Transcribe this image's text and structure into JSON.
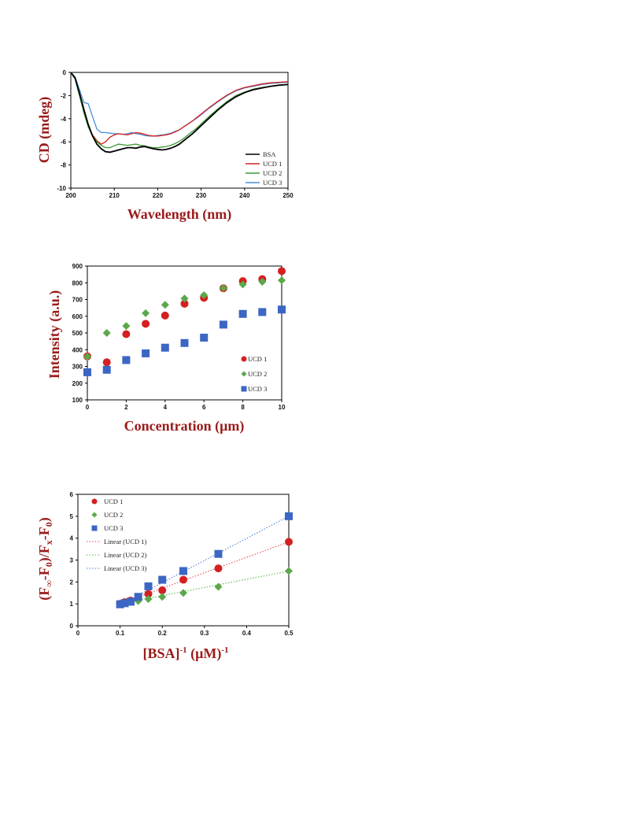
{
  "colors": {
    "axis_title": "#9b1b1b",
    "bsa": "#000000",
    "ucd1": "#d42020",
    "ucd2": "#3d9a35",
    "ucd3": "#4a8fd6",
    "ucd1_marker": "#d42020",
    "ucd2_marker": "#5aa84a",
    "ucd3_marker": "#3b66c4",
    "fit1": "#e05050",
    "fit2": "#5dba4c",
    "fit3": "#4a7fd8"
  },
  "chart_data": [
    {
      "type": "line",
      "xlabel": "Wavelength (nm)",
      "ylabel": "CD (mdeg)",
      "xlim": [
        200,
        250
      ],
      "ylim": [
        -10,
        0
      ],
      "xticks": [
        "200",
        "210",
        "220",
        "230",
        "240",
        "250"
      ],
      "yticks": [
        "0",
        "-2",
        "-4",
        "-6",
        "-8",
        "-10"
      ],
      "legend_position": "bottom-right",
      "series": [
        {
          "name": "BSA",
          "color_key": "bsa",
          "x": [
            200,
            201,
            202,
            203,
            204,
            205,
            206,
            207,
            208,
            209,
            210,
            211,
            212,
            213,
            214,
            215,
            216,
            217,
            218,
            219,
            220,
            221,
            222,
            223,
            224,
            225,
            226,
            227,
            228,
            229,
            230,
            232,
            234,
            236,
            238,
            240,
            242,
            244,
            246,
            248,
            250
          ],
          "y": [
            0.5,
            -0.5,
            -1.8,
            -3.2,
            -4.5,
            -5.5,
            -6.2,
            -6.6,
            -6.85,
            -6.9,
            -6.8,
            -6.7,
            -6.6,
            -6.5,
            -6.5,
            -6.55,
            -6.45,
            -6.4,
            -6.5,
            -6.6,
            -6.65,
            -6.7,
            -6.65,
            -6.55,
            -6.4,
            -6.2,
            -5.9,
            -5.6,
            -5.3,
            -4.95,
            -4.6,
            -3.9,
            -3.2,
            -2.6,
            -2.1,
            -1.75,
            -1.5,
            -1.35,
            -1.2,
            -1.1,
            -1.05
          ]
        },
        {
          "name": "UCD 1",
          "color_key": "ucd1",
          "x": [
            200,
            201,
            202,
            203,
            204,
            205,
            206,
            207,
            208,
            209,
            210,
            211,
            212,
            213,
            214,
            215,
            216,
            217,
            218,
            219,
            220,
            221,
            222,
            223,
            224,
            225,
            226,
            227,
            228,
            229,
            230,
            232,
            234,
            236,
            238,
            240,
            242,
            244,
            246,
            248,
            250
          ],
          "y": [
            0.5,
            -0.5,
            -1.9,
            -3.4,
            -4.6,
            -5.4,
            -5.9,
            -6.2,
            -6.0,
            -5.6,
            -5.4,
            -5.3,
            -5.35,
            -5.4,
            -5.3,
            -5.2,
            -5.25,
            -5.35,
            -5.45,
            -5.5,
            -5.5,
            -5.45,
            -5.4,
            -5.3,
            -5.15,
            -4.95,
            -4.7,
            -4.45,
            -4.2,
            -3.9,
            -3.6,
            -3.0,
            -2.45,
            -1.95,
            -1.55,
            -1.3,
            -1.15,
            -1.0,
            -0.9,
            -0.85,
            -0.8
          ]
        },
        {
          "name": "UCD 2",
          "color_key": "ucd2",
          "x": [
            200,
            201,
            202,
            203,
            204,
            205,
            206,
            207,
            208,
            209,
            210,
            211,
            212,
            213,
            214,
            215,
            216,
            217,
            218,
            219,
            220,
            221,
            222,
            223,
            224,
            225,
            226,
            227,
            228,
            229,
            230,
            232,
            234,
            236,
            238,
            240,
            242,
            244,
            246,
            248,
            250
          ],
          "y": [
            0.5,
            -0.6,
            -2.0,
            -3.5,
            -4.7,
            -5.5,
            -6.0,
            -6.3,
            -6.5,
            -6.5,
            -6.35,
            -6.2,
            -6.25,
            -6.3,
            -6.25,
            -6.2,
            -6.3,
            -6.35,
            -6.45,
            -6.5,
            -6.5,
            -6.45,
            -6.4,
            -6.3,
            -6.15,
            -5.95,
            -5.7,
            -5.4,
            -5.1,
            -4.8,
            -4.45,
            -3.75,
            -3.1,
            -2.5,
            -2.0,
            -1.7,
            -1.45,
            -1.3,
            -1.2,
            -1.1,
            -1.05
          ]
        },
        {
          "name": "UCD 3",
          "color_key": "ucd3",
          "x": [
            200,
            201,
            202,
            203,
            204,
            205,
            206,
            207,
            208,
            209,
            210,
            211,
            212,
            213,
            214,
            215,
            216,
            217,
            218,
            219,
            220,
            221,
            222,
            223,
            224,
            225,
            226,
            227,
            228,
            229,
            230,
            232,
            234,
            236,
            238,
            240,
            242,
            244,
            246,
            248,
            250
          ],
          "y": [
            0.5,
            -0.4,
            -1.5,
            -2.6,
            -2.7,
            -3.8,
            -4.9,
            -5.2,
            -5.2,
            -5.25,
            -5.3,
            -5.3,
            -5.35,
            -5.3,
            -5.2,
            -5.3,
            -5.35,
            -5.45,
            -5.5,
            -5.5,
            -5.45,
            -5.4,
            -5.35,
            -5.25,
            -5.1,
            -4.95,
            -4.7,
            -4.45,
            -4.2,
            -3.95,
            -3.65,
            -3.05,
            -2.5,
            -2.0,
            -1.6,
            -1.35,
            -1.2,
            -1.05,
            -0.95,
            -0.9,
            -0.85
          ]
        }
      ]
    },
    {
      "type": "scatter",
      "xlabel": "Concentration (μm)",
      "ylabel": "Intensity (a.u.)",
      "xlim": [
        0,
        10
      ],
      "ylim": [
        100,
        900
      ],
      "xticks": [
        "0",
        "2",
        "4",
        "6",
        "8",
        "10"
      ],
      "yticks": [
        "100",
        "200",
        "300",
        "400",
        "500",
        "600",
        "700",
        "800",
        "900"
      ],
      "legend_position": "bottom-right",
      "series": [
        {
          "name": "UCD 1",
          "color_key": "ucd1_marker",
          "marker": "circle",
          "x": [
            0,
            1,
            2,
            3,
            4,
            5,
            6,
            7,
            8,
            9,
            10
          ],
          "y": [
            360,
            325,
            493,
            555,
            604,
            675,
            710,
            767,
            810,
            822,
            870
          ]
        },
        {
          "name": "UCD 2",
          "color_key": "ucd2_marker",
          "marker": "diamond",
          "x": [
            0,
            1,
            2,
            3,
            4,
            5,
            6,
            7,
            8,
            9,
            10
          ],
          "y": [
            358,
            500,
            542,
            618,
            668,
            706,
            726,
            768,
            790,
            806,
            815
          ]
        },
        {
          "name": "UCD 3",
          "color_key": "ucd3_marker",
          "marker": "square",
          "x": [
            0,
            1,
            2,
            3,
            4,
            5,
            6,
            7,
            8,
            9,
            10
          ],
          "y": [
            265,
            280,
            338,
            378,
            412,
            440,
            472,
            550,
            614,
            625,
            640
          ]
        }
      ]
    },
    {
      "type": "scatter",
      "xlabel": "[BSA]⁻¹  (μM)⁻¹",
      "ylabel": "(F∞-F₀)/(Fₓ-F₀)",
      "xlim": [
        0,
        0.5
      ],
      "ylim": [
        0,
        6
      ],
      "xticks": [
        "0",
        "0.1",
        "0.2",
        "0.3",
        "0.4",
        "0.5"
      ],
      "yticks": [
        "0",
        "1",
        "2",
        "3",
        "4",
        "5",
        "6"
      ],
      "legend_position": "top-left",
      "series": [
        {
          "name": "UCD 1",
          "color_key": "ucd1_marker",
          "marker": "circle",
          "x": [
            0.1,
            0.111,
            0.125,
            0.143,
            0.167,
            0.2,
            0.25,
            0.333,
            0.5
          ],
          "y": [
            1.0,
            1.08,
            1.15,
            1.25,
            1.45,
            1.62,
            2.1,
            2.62,
            3.83
          ]
        },
        {
          "name": "UCD 2",
          "color_key": "ucd2_marker",
          "marker": "diamond",
          "x": [
            0.1,
            0.111,
            0.125,
            0.143,
            0.167,
            0.2,
            0.25,
            0.333,
            0.5
          ],
          "y": [
            1.0,
            1.05,
            1.08,
            1.13,
            1.22,
            1.32,
            1.5,
            1.78,
            2.5
          ]
        },
        {
          "name": "UCD 3",
          "color_key": "ucd3_marker",
          "marker": "square",
          "x": [
            0.1,
            0.111,
            0.125,
            0.143,
            0.167,
            0.2,
            0.25,
            0.333,
            0.5
          ],
          "y": [
            0.98,
            1.03,
            1.1,
            1.32,
            1.8,
            2.1,
            2.5,
            3.28,
            5.0
          ]
        }
      ],
      "fits": [
        {
          "name": "Linear (UCD 1)",
          "color_key": "fit1",
          "slope": 7.06,
          "intercept": 0.3,
          "x": [
            0.1,
            0.5
          ]
        },
        {
          "name": "Linear (UCD 2)",
          "color_key": "fit2",
          "slope": 3.73,
          "intercept": 0.63,
          "x": [
            0.1,
            0.5
          ]
        },
        {
          "name": "Linear (UCD 3)",
          "color_key": "fit3",
          "slope": 10.1,
          "intercept": -0.05,
          "x": [
            0.1,
            0.5
          ]
        }
      ]
    }
  ]
}
